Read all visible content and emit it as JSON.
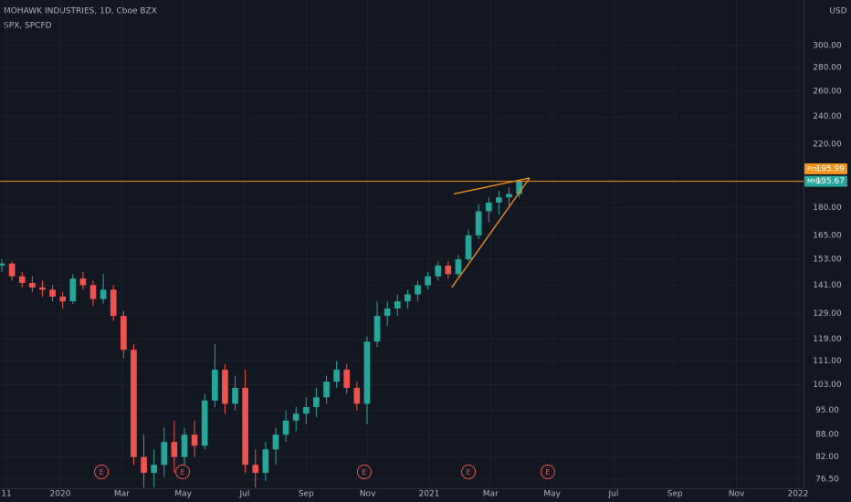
{
  "chart_data": {
    "type": "candlestick",
    "title": "MOHAWK INDUSTRIES, 1D, Cboe BZX",
    "subtitle": "SPX, SPCFD",
    "currency": "USD",
    "log_scale": true,
    "up_color": "#26a69a",
    "down_color": "#ef5350",
    "x": [
      -1.9,
      -1.57,
      -1.24,
      -0.91,
      -0.58,
      -0.25,
      0.08,
      0.41,
      0.74,
      1.07,
      1.4,
      1.73,
      2.06,
      2.39,
      2.72,
      3.05,
      3.38,
      3.71,
      4.04,
      4.37,
      4.7,
      5.03,
      5.36,
      5.69,
      6.02,
      6.35,
      6.68,
      7.01,
      7.34,
      7.67,
      8,
      8.33,
      8.66,
      8.99,
      9.32,
      9.65,
      9.98,
      10.31,
      10.64,
      10.97,
      11.3,
      11.63,
      11.96,
      12.29,
      12.62,
      12.95,
      13.28,
      13.61,
      13.94,
      14.27,
      14.6,
      14.93
    ],
    "open": [
      150,
      151,
      145,
      142,
      140,
      139,
      136,
      134,
      144,
      141,
      135,
      139,
      128,
      115,
      82,
      78,
      80,
      86,
      82,
      88,
      85,
      98,
      108,
      97,
      102,
      80,
      78,
      84,
      88,
      92,
      94,
      96,
      99,
      104,
      108,
      102,
      97,
      118,
      128,
      131,
      134,
      137,
      141,
      145,
      150,
      146,
      153,
      165,
      178,
      183,
      186,
      188
    ],
    "high": [
      153,
      152,
      147,
      145,
      143,
      141,
      138,
      146,
      147,
      143,
      146,
      141,
      130,
      117,
      88,
      84,
      90,
      92,
      90,
      92,
      100,
      117,
      110,
      106,
      108,
      84,
      86,
      90,
      95,
      96,
      99,
      102,
      106,
      111,
      110,
      104,
      120,
      134,
      134,
      137,
      139,
      143,
      147,
      152,
      152,
      155,
      168,
      182,
      186,
      190,
      192,
      196
    ],
    "low": [
      147,
      143,
      140,
      138,
      136,
      134,
      131,
      133,
      139,
      132,
      133,
      126,
      112,
      80,
      74.5,
      74.5,
      77,
      78,
      80,
      82,
      84,
      96,
      94,
      95,
      78,
      74.5,
      76,
      80,
      86,
      89,
      91,
      93,
      97,
      102,
      100,
      95,
      91,
      116,
      124,
      128,
      131,
      134,
      139,
      143,
      144,
      145,
      152,
      163,
      172,
      176,
      180,
      186
    ],
    "close": [
      151,
      145,
      142,
      140,
      139,
      136,
      134,
      144,
      141,
      135,
      139,
      128,
      115,
      82,
      78,
      80,
      86,
      82,
      88,
      85,
      98,
      108,
      97,
      102,
      80,
      78,
      84,
      88,
      92,
      94,
      96,
      99,
      104,
      108,
      102,
      97,
      118,
      128,
      131,
      134,
      137,
      141,
      145,
      150,
      146,
      153,
      165,
      178,
      183,
      186,
      188,
      195.67
    ],
    "xlim": [
      -1.96,
      24.18
    ],
    "ylim": [
      74.3,
      346.6
    ],
    "xticks": [
      {
        "value": -1.75,
        "label": "11"
      },
      {
        "value": 0,
        "label": "2020"
      },
      {
        "value": 2,
        "label": "Mar"
      },
      {
        "value": 4,
        "label": "May"
      },
      {
        "value": 6,
        "label": "Jul"
      },
      {
        "value": 8,
        "label": "Sep"
      },
      {
        "value": 10,
        "label": "Nov"
      },
      {
        "value": 12,
        "label": "2021"
      },
      {
        "value": 14,
        "label": "Mar"
      },
      {
        "value": 16,
        "label": "May"
      },
      {
        "value": 18,
        "label": "Jul"
      },
      {
        "value": 20,
        "label": "Sep"
      },
      {
        "value": 22,
        "label": "Nov"
      },
      {
        "value": 24,
        "label": "2022"
      }
    ],
    "yticks": [
      {
        "value": 76.5,
        "label": "76.50"
      },
      {
        "value": 82,
        "label": "82.00"
      },
      {
        "value": 88,
        "label": "88.00"
      },
      {
        "value": 95,
        "label": "95.00"
      },
      {
        "value": 103,
        "label": "103.00"
      },
      {
        "value": 111,
        "label": "111.00"
      },
      {
        "value": 119,
        "label": "119.00"
      },
      {
        "value": 129,
        "label": "129.00"
      },
      {
        "value": 141,
        "label": "141.00"
      },
      {
        "value": 153,
        "label": "153.00"
      },
      {
        "value": 165,
        "label": "165.00"
      },
      {
        "value": 180,
        "label": "180.00"
      },
      {
        "value": 220,
        "label": "220.00"
      },
      {
        "value": 240,
        "label": "240.00"
      },
      {
        "value": 260,
        "label": "260.00"
      },
      {
        "value": 280,
        "label": "280.00"
      },
      {
        "value": 300,
        "label": "300.00"
      }
    ],
    "grid": true,
    "price_tags": [
      {
        "label": "Pre",
        "value": 195.99,
        "color": "#f7931a"
      },
      {
        "label": "MHK",
        "value": 195.67,
        "color": "#26a69a"
      }
    ],
    "price_line_color": "#f7931a",
    "trendlines": [
      {
        "x": [
          12.8,
          15.27
        ],
        "y": [
          188,
          197.7
        ],
        "color": "#f7931a"
      },
      {
        "x": [
          12.74,
          15.27
        ],
        "y": [
          140,
          197.7
        ],
        "color": "#f7931a"
      }
    ],
    "earnings_label": "E",
    "earnings": [
      1.34,
      3.98,
      9.89,
      13.28,
      15.86
    ]
  }
}
